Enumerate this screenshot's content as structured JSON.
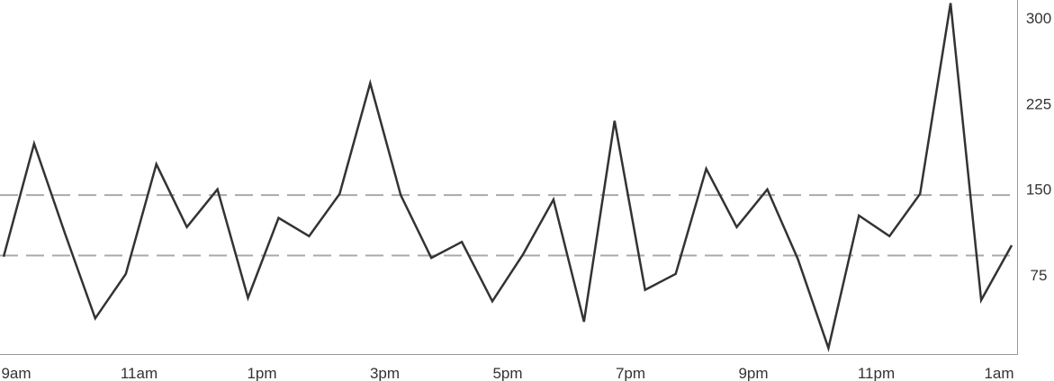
{
  "chart_data": {
    "type": "line",
    "title": "",
    "xlabel": "",
    "ylabel": "",
    "x_tick_labels": [
      "9am",
      "11am",
      "1pm",
      "3pm",
      "5pm",
      "7pm",
      "9pm",
      "11pm",
      "1am"
    ],
    "y_ticks": [
      75,
      150,
      225,
      300
    ],
    "ylim": [
      5,
      315
    ],
    "grid": false,
    "reference_lines": [
      145,
      92
    ],
    "series": [
      {
        "values": [
          91,
          190,
          112,
          37,
          76,
          172,
          117,
          150,
          55,
          125,
          109,
          146,
          243,
          145,
          90,
          104,
          52,
          93,
          141,
          34,
          210,
          62,
          76,
          168,
          117,
          150,
          89,
          11,
          127,
          109,
          146,
          313,
          53,
          101
        ]
      }
    ],
    "colors": {
      "line": "#333333",
      "reference": "#aaaaaa",
      "axis": "#999999",
      "text": "#333333"
    }
  }
}
